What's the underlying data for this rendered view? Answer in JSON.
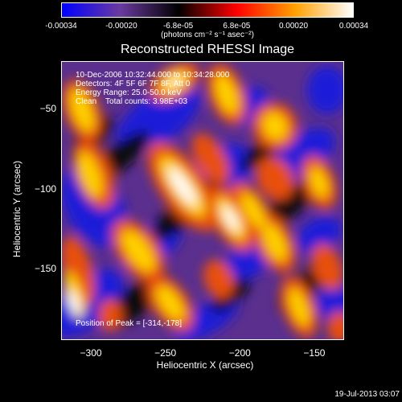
{
  "chart_data": {
    "type": "heatmap",
    "title": "Reconstructed RHESSI Image",
    "xlabel": "Heliocentric X (arcsec)",
    "ylabel": "Heliocentric Y (arcsec)",
    "xlim": [
      -320,
      -130
    ],
    "ylim": [
      -195,
      -20
    ],
    "x_ticks": [
      -300,
      -250,
      -200,
      -150
    ],
    "y_ticks": [
      -50,
      -100,
      -150
    ],
    "colorbar": {
      "range": [
        -0.00034,
        0.00034
      ],
      "tick_labels": [
        "-0.00034",
        "-0.00020",
        "-6.8e-05",
        "6.8e-05",
        "0.00020",
        "0.00034"
      ],
      "units": "(photons cm⁻² s⁻¹ asec⁻²)",
      "colormap": [
        "#0000ff",
        "#6a3aa0",
        "#000000",
        "#ff0000",
        "#ffa000",
        "#ffffff"
      ]
    },
    "annotations": {
      "time": "10-Dec-2006 10:32:44.000 to 10:34:28.000",
      "detectors": "Detectors: 4F 5F 6F 7F 8F, Att 0",
      "energy": "Energy Range: 25.0-50.0 keV",
      "clean": "Clean    Total counts: 3.98E+03",
      "peak": "Position of Peak = [-314,-178]"
    },
    "timestamp": "19-Jul-2013 03:07"
  }
}
